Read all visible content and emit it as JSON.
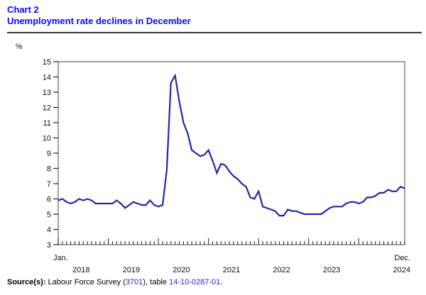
{
  "header": {
    "chart_label": "Chart 2",
    "title": "Unemployment rate declines in December"
  },
  "colors": {
    "title_blue": "#0a0af0",
    "link_blue": "#2626d8",
    "line_navy": "#2826a8"
  },
  "chart_data": {
    "type": "line",
    "title": "Unemployment rate declines in December",
    "ylabel": "%",
    "xlabel": "",
    "ylim": [
      3,
      15
    ],
    "y_ticks": [
      15,
      14,
      13,
      12,
      11,
      10,
      9,
      8,
      7,
      6,
      5,
      4,
      3
    ],
    "grid": false,
    "legend": "none",
    "x_frequency": "monthly",
    "x_start": "2018-01",
    "x_end": "2024-12",
    "x_first_label": "Jan.",
    "x_last_label": "Dec.",
    "year_labels": [
      "2018",
      "2019",
      "2020",
      "2021",
      "2022",
      "2023",
      "2024"
    ],
    "line_color": "#2826a8",
    "series": [
      {
        "name": "Unemployment rate (%)",
        "values": [
          5.9,
          6.0,
          5.8,
          5.7,
          5.8,
          6.0,
          5.9,
          6.0,
          5.9,
          5.7,
          5.7,
          5.7,
          5.7,
          5.7,
          5.9,
          5.7,
          5.4,
          5.6,
          5.8,
          5.7,
          5.6,
          5.6,
          5.9,
          5.6,
          5.5,
          5.6,
          7.9,
          13.6,
          14.1,
          12.4,
          11.0,
          10.3,
          9.2,
          9.0,
          8.8,
          8.9,
          9.2,
          8.5,
          7.7,
          8.3,
          8.2,
          7.8,
          7.5,
          7.3,
          7.0,
          6.8,
          6.1,
          6.0,
          6.5,
          5.5,
          5.4,
          5.3,
          5.2,
          4.9,
          4.9,
          5.3,
          5.2,
          5.2,
          5.1,
          5.0,
          5.0,
          5.0,
          5.0,
          5.0,
          5.2,
          5.4,
          5.5,
          5.5,
          5.5,
          5.7,
          5.8,
          5.8,
          5.7,
          5.8,
          6.1,
          6.1,
          6.2,
          6.4,
          6.4,
          6.6,
          6.5,
          6.5,
          6.8,
          6.7
        ]
      }
    ]
  },
  "source": {
    "prefix": "Source(s):",
    "text_1": " Labour Force Survey (",
    "link_1": "3701",
    "text_2": "), table ",
    "link_2": "14-10-0287-01",
    "text_3": "."
  }
}
